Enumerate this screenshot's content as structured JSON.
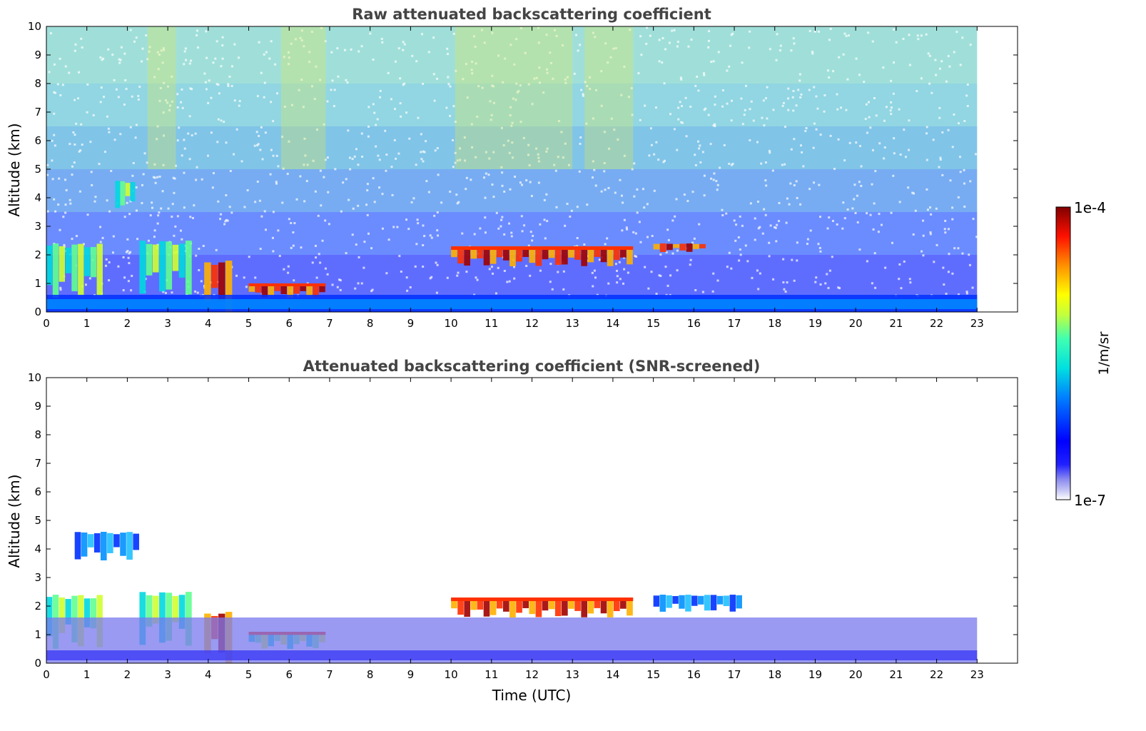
{
  "chart_data": [
    {
      "type": "heatmap",
      "title": "Raw attenuated backscattering coefficient",
      "xlabel": "",
      "ylabel": "Altitude (km)",
      "xlim": [
        0,
        24
      ],
      "ylim": [
        0,
        10
      ],
      "x_ticks": [
        0,
        1,
        2,
        3,
        4,
        5,
        6,
        7,
        8,
        9,
        10,
        11,
        12,
        13,
        14,
        15,
        16,
        17,
        18,
        19,
        20,
        21,
        22,
        23
      ],
      "y_ticks": [
        0,
        1,
        2,
        3,
        4,
        5,
        6,
        7,
        8,
        9,
        10
      ],
      "data_extent_x": [
        0,
        23
      ],
      "features": [
        {
          "kind": "cloud",
          "x": [
            0.0,
            1.4
          ],
          "y": [
            0.5,
            2.4
          ],
          "level": "high"
        },
        {
          "kind": "cloud",
          "x": [
            1.7,
            2.2
          ],
          "y": [
            3.6,
            4.6
          ],
          "level": "high"
        },
        {
          "kind": "cloud",
          "x": [
            2.3,
            3.6
          ],
          "y": [
            0.6,
            2.5
          ],
          "level": "high"
        },
        {
          "kind": "cloud",
          "x": [
            3.9,
            4.6
          ],
          "y": [
            0.0,
            1.8
          ],
          "level": "very-high"
        },
        {
          "kind": "cloud-layer",
          "x": [
            5.0,
            6.9
          ],
          "y": [
            0.5,
            1.0
          ],
          "level": "very-high"
        },
        {
          "kind": "cloud-layer",
          "x": [
            10.0,
            14.5
          ],
          "y": [
            1.6,
            2.3
          ],
          "level": "very-high"
        },
        {
          "kind": "cloud",
          "x": [
            15.0,
            16.3
          ],
          "y": [
            2.1,
            2.4
          ],
          "level": "very-high"
        },
        {
          "kind": "boundary-layer",
          "x": [
            0.0,
            23.0
          ],
          "y": [
            0.0,
            0.6
          ],
          "level": "medium"
        }
      ]
    },
    {
      "type": "heatmap",
      "title": "Attenuated backscattering coefficient (SNR-screened)",
      "xlabel": "Time (UTC)",
      "ylabel": "Altitude (km)",
      "xlim": [
        0,
        24
      ],
      "ylim": [
        0,
        10
      ],
      "x_ticks": [
        0,
        1,
        2,
        3,
        4,
        5,
        6,
        7,
        8,
        9,
        10,
        11,
        12,
        13,
        14,
        15,
        16,
        17,
        18,
        19,
        20,
        21,
        22,
        23
      ],
      "y_ticks": [
        0,
        1,
        2,
        3,
        4,
        5,
        6,
        7,
        8,
        9,
        10
      ],
      "data_extent_x": [
        0,
        23
      ],
      "features": [
        {
          "kind": "cloud",
          "x": [
            0.0,
            1.4
          ],
          "y": [
            0.5,
            2.4
          ],
          "level": "high"
        },
        {
          "kind": "cloud",
          "x": [
            0.7,
            2.3
          ],
          "y": [
            3.6,
            4.6
          ],
          "level": "medium"
        },
        {
          "kind": "cloud",
          "x": [
            2.3,
            3.6
          ],
          "y": [
            0.6,
            2.5
          ],
          "level": "high"
        },
        {
          "kind": "cloud",
          "x": [
            3.9,
            4.6
          ],
          "y": [
            0.0,
            1.8
          ],
          "level": "very-high"
        },
        {
          "kind": "cloud-layer",
          "x": [
            5.0,
            6.9
          ],
          "y": [
            0.5,
            1.1
          ],
          "level": "high"
        },
        {
          "kind": "cloud-layer",
          "x": [
            10.0,
            14.5
          ],
          "y": [
            1.6,
            2.3
          ],
          "level": "very-high"
        },
        {
          "kind": "cloud",
          "x": [
            15.0,
            17.2
          ],
          "y": [
            1.8,
            2.4
          ],
          "level": "medium"
        },
        {
          "kind": "boundary-layer",
          "x": [
            0.0,
            23.0
          ],
          "y": [
            0.0,
            1.6
          ],
          "level": "low"
        }
      ]
    }
  ],
  "colorbar": {
    "max_label": "1e-4",
    "min_label": "1e-7",
    "label": "1/m/sr",
    "colormap": "jet"
  }
}
